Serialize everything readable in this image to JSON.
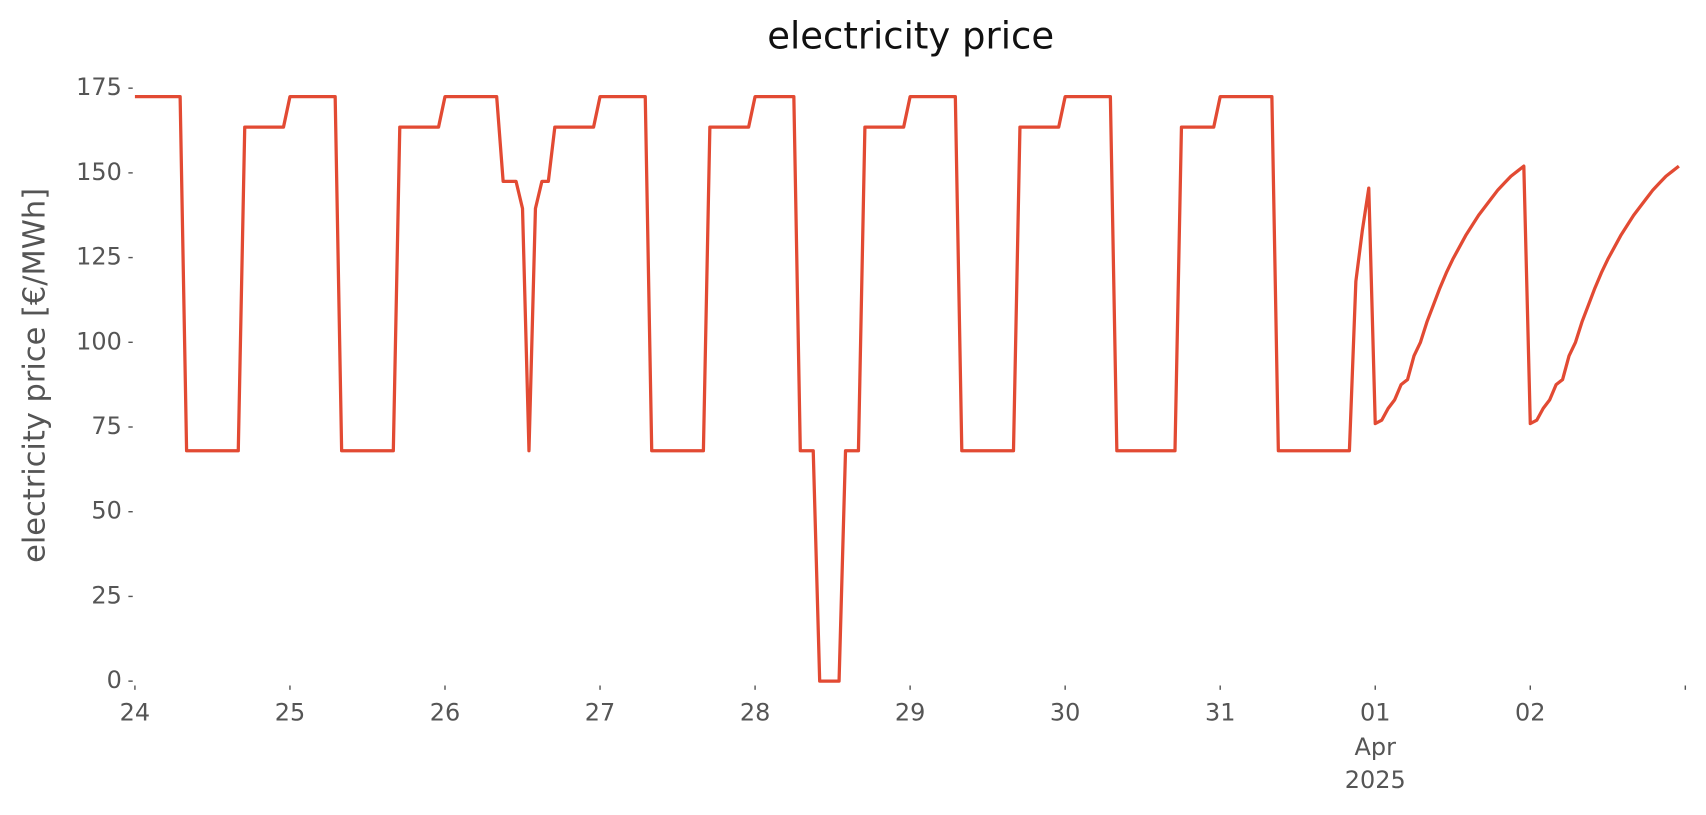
{
  "chart_data": {
    "type": "line",
    "title": "electricity price",
    "y_label": "electricity price [€/MWh]",
    "color": "#e24a33",
    "x": [
      0,
      7,
      8,
      16,
      17,
      23,
      24,
      31,
      32,
      40,
      41,
      47,
      48,
      56,
      57,
      59,
      60,
      61,
      62,
      63,
      64,
      65,
      71,
      72,
      79,
      80,
      88,
      89,
      95,
      96,
      102,
      103,
      105,
      106,
      109,
      110,
      112,
      113,
      119,
      120,
      127,
      128,
      136,
      137,
      143,
      144,
      151,
      152,
      161,
      162,
      167,
      168,
      176,
      177,
      188,
      189,
      190,
      191,
      192,
      193,
      194,
      195,
      196,
      197,
      198,
      199,
      200,
      201,
      202,
      203,
      204,
      205,
      206,
      207,
      208,
      209,
      210,
      211,
      212,
      213,
      214,
      215,
      216,
      217,
      218,
      219,
      220,
      221,
      222,
      223,
      224,
      225,
      226,
      227,
      228,
      229,
      230,
      231,
      232,
      233,
      234,
      235,
      236,
      237,
      238,
      239
    ],
    "values": [
      172.5,
      172.5,
      68,
      68,
      163.5,
      163.5,
      172.5,
      172.5,
      68,
      68,
      163.5,
      163.5,
      172.5,
      172.5,
      147.5,
      147.5,
      139.5,
      68,
      139.5,
      147.5,
      147.5,
      163.5,
      163.5,
      172.5,
      172.5,
      68,
      68,
      163.5,
      163.5,
      172.5,
      172.5,
      68,
      68,
      0,
      0,
      68,
      68,
      163.5,
      163.5,
      172.5,
      172.5,
      68,
      68,
      163.5,
      163.5,
      172.5,
      172.5,
      68,
      68,
      163.5,
      163.5,
      172.5,
      172.5,
      68,
      68,
      118,
      133,
      145.5,
      76,
      77,
      80.5,
      83,
      87.5,
      89,
      96,
      100,
      106,
      111,
      116,
      120.5,
      124.5,
      128,
      131.5,
      134.5,
      137.5,
      140,
      142.5,
      145,
      147,
      149,
      150.5,
      152,
      76,
      77,
      80.5,
      83,
      87.5,
      89,
      96,
      100,
      106,
      111,
      116,
      120.5,
      124.5,
      128,
      131.5,
      134.5,
      137.5,
      140,
      142.5,
      145,
      147,
      149,
      150.5,
      152
    ],
    "xlim": [
      0,
      240
    ],
    "xticks": [
      {
        "value": 0,
        "label": "24"
      },
      {
        "value": 24,
        "label": "25"
      },
      {
        "value": 48,
        "label": "26"
      },
      {
        "value": 72,
        "label": "27"
      },
      {
        "value": 96,
        "label": "28"
      },
      {
        "value": 120,
        "label": "29"
      },
      {
        "value": 144,
        "label": "30"
      },
      {
        "value": 168,
        "label": "31"
      },
      {
        "value": 192,
        "label": "01"
      },
      {
        "value": 216,
        "label": "02"
      },
      {
        "value": 240,
        "label": null
      }
    ],
    "x_date_label": [
      "Apr",
      "2025"
    ],
    "ylim": [
      0,
      175
    ],
    "yticks": [
      0,
      25,
      50,
      75,
      100,
      125,
      150,
      175
    ],
    "grid": false
  }
}
